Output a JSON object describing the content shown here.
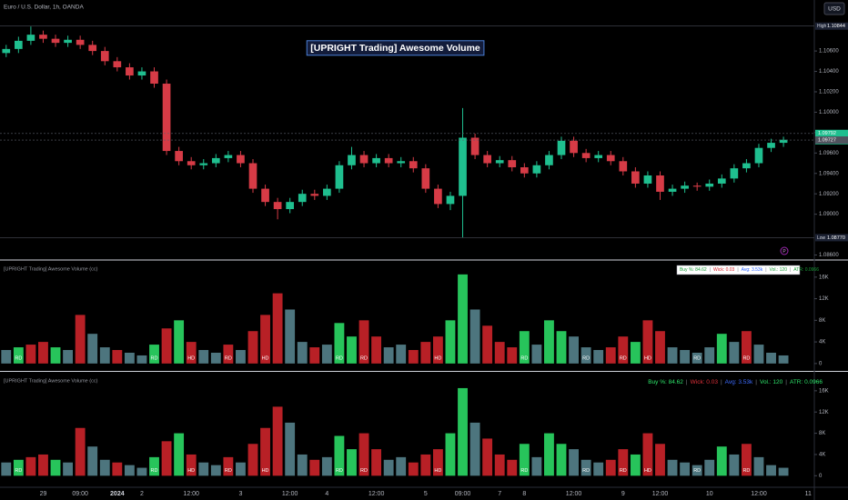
{
  "header": {
    "symbol": "Euro / U.S. Dollar, 1h, OANDA",
    "currency": "USD"
  },
  "chart_data": [
    {
      "type": "candlestick",
      "title": "[UPRIGHT Trading] Awesome Volume",
      "categories": [
        null,
        null,
        null,
        "29",
        null,
        null,
        "09:00",
        null,
        null,
        "2024",
        null,
        "2",
        null,
        null,
        null,
        "12:00",
        null,
        null,
        null,
        "3",
        null,
        null,
        null,
        "12:00",
        null,
        null,
        "4",
        null,
        null,
        null,
        "12:00",
        null,
        null,
        null,
        "5",
        null,
        null,
        "09:00",
        null,
        null,
        "7",
        null,
        "8",
        null,
        null,
        null,
        "12:00",
        null,
        null,
        null,
        "9",
        null,
        null,
        "12:00",
        null,
        null,
        null,
        "10",
        null,
        null,
        null,
        "12:00",
        null,
        null,
        null,
        "11"
      ],
      "open": [
        1.1058,
        1.1062,
        1.107,
        1.1076,
        1.1072,
        1.1068,
        1.1071,
        1.1066,
        1.106,
        1.105,
        1.1044,
        1.1036,
        1.104,
        1.1028,
        1.0962,
        1.0952,
        1.0948,
        1.095,
        1.0955,
        1.0958,
        1.095,
        1.0925,
        1.0912,
        1.0905,
        1.0912,
        1.092,
        1.0918,
        1.0925,
        1.0948,
        1.0958,
        1.095,
        1.0955,
        1.095,
        1.0952,
        1.0945,
        1.0925,
        1.091,
        1.0918,
        1.0975,
        1.0958,
        1.095,
        1.0953,
        1.0946,
        1.094,
        1.0948,
        1.0958,
        1.0972,
        1.096,
        1.0955,
        1.0958,
        1.0952,
        1.0942,
        1.093,
        1.0938,
        1.0922,
        1.0925,
        1.0928,
        1.0927,
        1.093,
        1.0935,
        1.0945,
        1.095,
        1.0965,
        1.097,
        null,
        null
      ],
      "high": [
        1.1066,
        1.1074,
        1.1084,
        1.108,
        1.1076,
        1.1075,
        1.1075,
        1.107,
        1.1064,
        1.1054,
        1.1048,
        1.1044,
        1.1044,
        1.1032,
        1.0966,
        1.0956,
        1.0954,
        1.0959,
        1.0962,
        1.0962,
        1.0954,
        1.0929,
        1.0916,
        1.0916,
        1.0924,
        1.0924,
        1.0929,
        1.0952,
        1.0966,
        1.0962,
        1.0959,
        1.0959,
        1.0956,
        1.0956,
        1.0949,
        1.0929,
        1.0922,
        1.1004,
        1.0979,
        1.0962,
        1.0957,
        1.0957,
        1.095,
        1.0952,
        1.0962,
        1.0976,
        1.0976,
        1.0964,
        1.0962,
        1.0962,
        1.0956,
        1.0946,
        1.0942,
        1.0942,
        1.0929,
        1.0932,
        1.0931,
        1.0934,
        1.0939,
        1.0949,
        1.0954,
        1.0969,
        1.0974,
        1.0976,
        null,
        null
      ],
      "low": [
        1.1054,
        1.1058,
        1.1066,
        1.1068,
        1.1064,
        1.1064,
        1.1062,
        1.1056,
        1.1046,
        1.104,
        1.1032,
        1.1032,
        1.1024,
        1.0958,
        1.0948,
        1.0944,
        1.0944,
        1.0946,
        1.0951,
        1.0946,
        1.0921,
        1.0908,
        1.0895,
        1.0901,
        1.0908,
        1.0914,
        1.0914,
        1.0921,
        1.0944,
        1.0946,
        1.0946,
        1.0946,
        1.0946,
        1.0941,
        1.0921,
        1.0906,
        1.0904,
        1.0877,
        1.0954,
        1.0946,
        1.0946,
        1.0942,
        1.0936,
        1.0936,
        1.0944,
        1.0954,
        1.0956,
        1.0951,
        1.0951,
        1.0948,
        1.0938,
        1.0926,
        1.0926,
        1.0914,
        1.0918,
        1.0921,
        1.0923,
        1.0923,
        1.0926,
        1.0931,
        1.0941,
        1.0946,
        1.0961,
        1.0966,
        null,
        null
      ],
      "close": [
        1.1062,
        1.107,
        1.1076,
        1.1072,
        1.1068,
        1.1071,
        1.1066,
        1.106,
        1.105,
        1.1044,
        1.1036,
        1.104,
        1.1028,
        1.0962,
        1.0952,
        1.0948,
        1.095,
        1.0955,
        1.0958,
        1.095,
        1.0925,
        1.0912,
        1.0905,
        1.0912,
        1.092,
        1.0918,
        1.0925,
        1.0948,
        1.0958,
        1.095,
        1.0955,
        1.095,
        1.0952,
        1.0945,
        1.0925,
        1.091,
        1.0918,
        1.0975,
        1.0958,
        1.095,
        1.0953,
        1.0946,
        1.094,
        1.0948,
        1.0958,
        1.0972,
        1.096,
        1.0955,
        1.0958,
        1.0952,
        1.0942,
        1.093,
        1.0938,
        1.0922,
        1.0925,
        1.0928,
        1.0927,
        1.093,
        1.0935,
        1.0945,
        1.095,
        1.0965,
        1.097,
        1.0973,
        null,
        null
      ],
      "up_color": "#1fbf8f",
      "down_color": "#d63b46",
      "ylim": [
        1.0856,
        1.111
      ],
      "yticks": [
        {
          "value": 1.086,
          "label": "1.08600"
        },
        {
          "value": 1.09,
          "label": "1.09000"
        },
        {
          "value": 1.092,
          "label": "1.09200"
        },
        {
          "value": 1.094,
          "label": "1.09400"
        },
        {
          "value": 1.096,
          "label": "1.09600"
        },
        {
          "value": 1.098,
          "label": "1.09800"
        },
        {
          "value": 1.1,
          "label": "1.10000"
        },
        {
          "value": 1.102,
          "label": "1.10200"
        },
        {
          "value": 1.104,
          "label": "1.10400"
        },
        {
          "value": 1.106,
          "label": "1.10600"
        }
      ],
      "markers": [
        {
          "name": "High",
          "value": 1.10844,
          "color": "#1c2233"
        },
        {
          "name": "Low",
          "value": 1.0877,
          "label": "1.08770",
          "color": "#1c2233"
        },
        {
          "value": 1.09792,
          "countdown": "54:57",
          "color": "#1fbf8f"
        },
        {
          "value": 1.09727,
          "color": "#50535e"
        }
      ],
      "grid": false
    },
    {
      "type": "bar",
      "title": "[UPRIGHT Trading] Awesome Volume (cc)",
      "values": [
        2500,
        3000,
        3500,
        4000,
        3000,
        2500,
        9000,
        5500,
        3000,
        2500,
        2000,
        1500,
        3500,
        6500,
        8000,
        4000,
        2500,
        2000,
        3500,
        2500,
        6000,
        9000,
        13000,
        10000,
        4000,
        3000,
        3500,
        7500,
        5000,
        8000,
        5000,
        3000,
        3500,
        2500,
        4000,
        5000,
        8000,
        16500,
        10000,
        7000,
        4000,
        3000,
        6000,
        3500,
        8000,
        6000,
        5000,
        3000,
        2500,
        3000,
        5000,
        4000,
        8000,
        6000,
        3000,
        2500,
        2000,
        3000,
        5500,
        4000,
        6000,
        3500,
        2000,
        1500,
        null,
        null
      ],
      "colors": [
        "#5a8a94",
        "#2ee66b",
        "#d8262d",
        "#d8262d",
        "#2ee66b",
        "#5a8a94",
        "#d8262d",
        "#5a8a94",
        "#5a8a94",
        "#d8262d",
        "#5a8a94",
        "#5a8a94",
        "#2ee66b",
        "#d8262d",
        "#2ee66b",
        "#d8262d",
        "#5a8a94",
        "#5a8a94",
        "#d8262d",
        "#5a8a94",
        "#d8262d",
        "#d8262d",
        "#d8262d",
        "#5a8a94",
        "#5a8a94",
        "#d8262d",
        "#5a8a94",
        "#2ee66b",
        "#2ee66b",
        "#d8262d",
        "#d8262d",
        "#5a8a94",
        "#5a8a94",
        "#d8262d",
        "#d8262d",
        "#d8262d",
        "#2ee66b",
        "#2ee66b",
        "#5a8a94",
        "#d8262d",
        "#d8262d",
        "#d8262d",
        "#2ee66b",
        "#5a8a94",
        "#2ee66b",
        "#2ee66b",
        "#5a8a94",
        "#5a8a94",
        "#5a8a94",
        "#d8262d",
        "#d8262d",
        "#2ee66b",
        "#d8262d",
        "#d8262d",
        "#5a8a94",
        "#5a8a94",
        "#5a8a94",
        "#5a8a94",
        "#2ee66b",
        "#5a8a94",
        "#d8262d",
        "#5a8a94",
        "#5a8a94",
        "#5a8a94",
        null,
        null
      ],
      "tags": [
        null,
        "RD",
        null,
        null,
        null,
        null,
        null,
        null,
        null,
        null,
        null,
        null,
        "RD",
        null,
        null,
        "HD",
        null,
        null,
        "RD",
        null,
        null,
        "HD",
        null,
        null,
        null,
        null,
        null,
        "RD",
        null,
        "RD",
        null,
        null,
        null,
        null,
        null,
        "HD",
        null,
        null,
        null,
        null,
        null,
        null,
        "RD",
        null,
        null,
        null,
        null,
        "RD",
        null,
        null,
        "RD",
        null,
        "HD",
        null,
        null,
        null,
        "RD",
        null,
        null,
        null,
        "RD",
        null,
        null,
        null,
        null,
        null
      ],
      "ylim": [
        -1200,
        19000
      ],
      "yticks": [
        0,
        {
          "value": 4000,
          "label": "4K"
        },
        {
          "value": 8000,
          "label": "8K"
        },
        {
          "value": 12000,
          "label": "12K"
        },
        {
          "value": 16000,
          "label": "16K"
        }
      ],
      "separator": "|",
      "stats": [
        {
          "text": "Buy %: 84.62",
          "color": "#1b9e3a"
        },
        {
          "text": "Wick: 0.03",
          "color": "#d8262d"
        },
        {
          "text": "Avg: 3.53k",
          "color": "#2962ff"
        },
        {
          "text": "Vol.: 120",
          "color": "#1b9e3a"
        },
        {
          "text": "ATR: 0.0966",
          "color": "#1b9e3a"
        }
      ]
    },
    {
      "type": "bar",
      "title": "[UPRIGHT Trading] Awesome Volume (cc)",
      "values": [
        2500,
        3000,
        3500,
        4000,
        3000,
        2500,
        9000,
        5500,
        3000,
        2500,
        2000,
        1500,
        3500,
        6500,
        8000,
        4000,
        2500,
        2000,
        3500,
        2500,
        6000,
        9000,
        13000,
        10000,
        4000,
        3000,
        3500,
        7500,
        5000,
        8000,
        5000,
        3000,
        3500,
        2500,
        4000,
        5000,
        8000,
        16500,
        10000,
        7000,
        4000,
        3000,
        6000,
        3500,
        8000,
        6000,
        5000,
        3000,
        2500,
        3000,
        5000,
        4000,
        8000,
        6000,
        3000,
        2500,
        2000,
        3000,
        5500,
        4000,
        6000,
        3500,
        2000,
        1500,
        null,
        null
      ],
      "colors": [
        "#5a8a94",
        "#2ee66b",
        "#d8262d",
        "#d8262d",
        "#2ee66b",
        "#5a8a94",
        "#d8262d",
        "#5a8a94",
        "#5a8a94",
        "#d8262d",
        "#5a8a94",
        "#5a8a94",
        "#2ee66b",
        "#d8262d",
        "#2ee66b",
        "#d8262d",
        "#5a8a94",
        "#5a8a94",
        "#d8262d",
        "#5a8a94",
        "#d8262d",
        "#d8262d",
        "#d8262d",
        "#5a8a94",
        "#5a8a94",
        "#d8262d",
        "#5a8a94",
        "#2ee66b",
        "#2ee66b",
        "#d8262d",
        "#d8262d",
        "#5a8a94",
        "#5a8a94",
        "#d8262d",
        "#d8262d",
        "#d8262d",
        "#2ee66b",
        "#2ee66b",
        "#5a8a94",
        "#d8262d",
        "#d8262d",
        "#d8262d",
        "#2ee66b",
        "#5a8a94",
        "#2ee66b",
        "#2ee66b",
        "#5a8a94",
        "#5a8a94",
        "#5a8a94",
        "#d8262d",
        "#d8262d",
        "#2ee66b",
        "#d8262d",
        "#d8262d",
        "#5a8a94",
        "#5a8a94",
        "#5a8a94",
        "#5a8a94",
        "#2ee66b",
        "#5a8a94",
        "#d8262d",
        "#5a8a94",
        "#5a8a94",
        "#5a8a94",
        null,
        null
      ],
      "tags": [
        null,
        "RD",
        null,
        null,
        null,
        null,
        null,
        null,
        null,
        null,
        null,
        null,
        "RD",
        null,
        null,
        "HD",
        null,
        null,
        "RD",
        null,
        null,
        "HD",
        null,
        null,
        null,
        null,
        null,
        "RD",
        null,
        "RD",
        null,
        null,
        null,
        null,
        null,
        "HD",
        null,
        null,
        null,
        null,
        null,
        null,
        "RD",
        null,
        null,
        null,
        null,
        "RD",
        null,
        null,
        "RD",
        null,
        "HD",
        null,
        null,
        null,
        "RD",
        null,
        null,
        null,
        "RD",
        null,
        null,
        null,
        null,
        null
      ],
      "ylim": [
        -2000,
        19400
      ],
      "yticks": [
        0,
        {
          "value": 4000,
          "label": "4K"
        },
        {
          "value": 8000,
          "label": "8K"
        },
        {
          "value": 12000,
          "label": "12K"
        },
        {
          "value": 16000,
          "label": "16K"
        }
      ],
      "separator": "|",
      "stats": [
        {
          "text": "Buy %: 84.62",
          "color": "#2ee66b"
        },
        {
          "text": "Wick: 0.03",
          "color": "#e0303a"
        },
        {
          "text": "Avg: 3.53k",
          "color": "#3d6cff"
        },
        {
          "text": "Vol.: 120",
          "color": "#2ee66b"
        },
        {
          "text": "ATR: 0.0966",
          "color": "#2ee66b"
        }
      ]
    }
  ]
}
